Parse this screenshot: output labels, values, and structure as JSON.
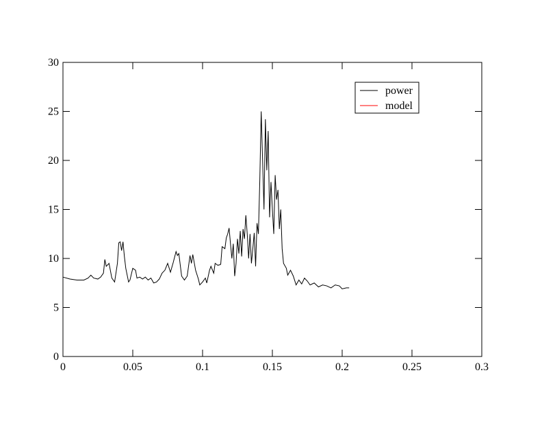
{
  "chart_data": {
    "type": "line",
    "xlim": [
      0,
      0.3
    ],
    "ylim": [
      0,
      30
    ],
    "xticks": [
      0,
      0.05,
      0.1,
      0.15,
      0.2,
      0.25,
      0.3
    ],
    "yticks": [
      0,
      5,
      10,
      15,
      20,
      25,
      30
    ],
    "legend": "upper right",
    "series": [
      {
        "name": "power",
        "color": "#000000",
        "x": [
          0,
          0.005,
          0.01,
          0.015,
          0.018,
          0.02,
          0.022,
          0.025,
          0.027,
          0.029,
          0.03,
          0.031,
          0.033,
          0.035,
          0.037,
          0.039,
          0.04,
          0.041,
          0.042,
          0.043,
          0.044,
          0.045,
          0.047,
          0.048,
          0.05,
          0.052,
          0.053,
          0.055,
          0.057,
          0.059,
          0.061,
          0.063,
          0.065,
          0.067,
          0.069,
          0.071,
          0.073,
          0.075,
          0.077,
          0.079,
          0.081,
          0.082,
          0.083,
          0.085,
          0.087,
          0.089,
          0.091,
          0.092,
          0.093,
          0.095,
          0.097,
          0.098,
          0.1,
          0.102,
          0.103,
          0.105,
          0.106,
          0.108,
          0.109,
          0.111,
          0.113,
          0.114,
          0.116,
          0.117,
          0.118,
          0.119,
          0.12,
          0.121,
          0.122,
          0.123,
          0.124,
          0.125,
          0.126,
          0.127,
          0.128,
          0.129,
          0.13,
          0.131,
          0.132,
          0.133,
          0.134,
          0.135,
          0.136,
          0.137,
          0.138,
          0.139,
          0.14,
          0.141,
          0.142,
          0.143,
          0.144,
          0.145,
          0.146,
          0.147,
          0.148,
          0.149,
          0.15,
          0.151,
          0.152,
          0.153,
          0.154,
          0.155,
          0.156,
          0.157,
          0.158,
          0.16,
          0.161,
          0.163,
          0.165,
          0.167,
          0.169,
          0.171,
          0.173,
          0.175,
          0.177,
          0.18,
          0.183,
          0.186,
          0.189,
          0.192,
          0.195,
          0.198,
          0.2,
          0.203,
          0.205
        ],
        "values": [
          8.1,
          7.9,
          7.8,
          7.8,
          8.0,
          8.3,
          8.0,
          7.9,
          8.1,
          8.5,
          9.9,
          9.2,
          9.5,
          8.0,
          7.6,
          9.5,
          11.6,
          11.7,
          10.8,
          11.7,
          10.2,
          9.0,
          7.6,
          7.8,
          9.0,
          8.8,
          8.0,
          8.1,
          7.9,
          8.1,
          7.8,
          8.0,
          7.5,
          7.6,
          7.9,
          8.5,
          8.8,
          9.5,
          8.6,
          9.6,
          10.7,
          10.3,
          10.5,
          8.2,
          7.8,
          8.2,
          10.3,
          9.5,
          10.4,
          8.8,
          7.9,
          7.3,
          7.6,
          8.0,
          7.5,
          8.8,
          9.2,
          8.5,
          9.5,
          9.3,
          9.4,
          11.2,
          11.0,
          12.1,
          12.5,
          13.1,
          11.5,
          10.0,
          11.5,
          8.2,
          9.5,
          12.0,
          10.5,
          12.8,
          10.2,
          13.0,
          12.0,
          14.4,
          12.5,
          10.0,
          12.5,
          9.5,
          11.0,
          12.6,
          9.2,
          13.6,
          12.5,
          18.0,
          25.0,
          20.0,
          15.0,
          24.2,
          19.0,
          23.0,
          14.2,
          17.8,
          15.0,
          12.5,
          18.5,
          16.0,
          17.0,
          13.0,
          15.0,
          11.0,
          9.5,
          9.0,
          8.3,
          8.8,
          8.2,
          7.3,
          7.8,
          7.4,
          8.0,
          7.7,
          7.3,
          7.5,
          7.1,
          7.3,
          7.2,
          7.0,
          7.3,
          7.2,
          6.9,
          7.0,
          7.0
        ]
      },
      {
        "name": "model",
        "color": "#ff0000",
        "x": [],
        "values": []
      }
    ]
  }
}
